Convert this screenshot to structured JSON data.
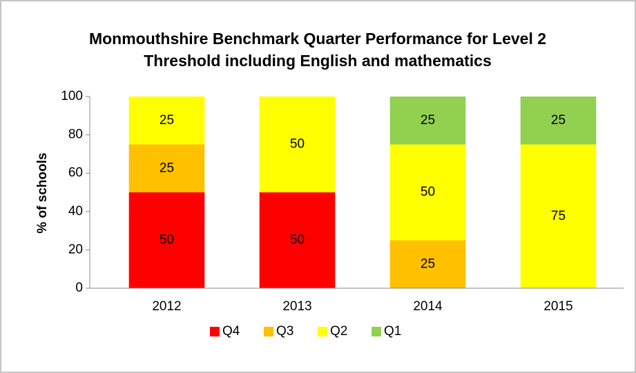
{
  "chart_data": {
    "type": "stacked_bar",
    "title": "Monmouthshire Benchmark Quarter Performance for Level 2 Threshold including English and mathematics",
    "ylabel": "% of schools",
    "categories": [
      "2012",
      "2013",
      "2014",
      "2015"
    ],
    "series": [
      {
        "name": "Q4",
        "color": "#ff0000",
        "values": [
          50,
          50,
          0,
          0
        ]
      },
      {
        "name": "Q3",
        "color": "#ffc000",
        "values": [
          25,
          0,
          25,
          0
        ]
      },
      {
        "name": "Q2",
        "color": "#ffff00",
        "values": [
          25,
          50,
          50,
          75
        ]
      },
      {
        "name": "Q1",
        "color": "#92d050",
        "values": [
          0,
          0,
          25,
          25
        ]
      }
    ],
    "ylim": [
      0,
      100
    ],
    "yticks": [
      0,
      20,
      40,
      60,
      80,
      100
    ],
    "grid": false,
    "legend": "bottom"
  }
}
